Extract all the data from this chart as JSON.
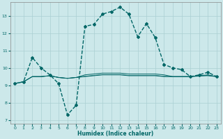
{
  "xlabel": "Humidex (Indice chaleur)",
  "xlim": [
    -0.5,
    23.5
  ],
  "ylim": [
    6.8,
    13.8
  ],
  "yticks": [
    7,
    8,
    9,
    10,
    11,
    12,
    13
  ],
  "xticks": [
    0,
    1,
    2,
    3,
    4,
    5,
    6,
    7,
    8,
    9,
    10,
    11,
    12,
    13,
    14,
    15,
    16,
    17,
    18,
    19,
    20,
    21,
    22,
    23
  ],
  "bg_color": "#cce8ea",
  "grid_color": "#aacfd2",
  "line_color": "#006666",
  "main_x": [
    0,
    1,
    2,
    3,
    4,
    5,
    6,
    7,
    8,
    9,
    10,
    11,
    12,
    13,
    14,
    15,
    16,
    17,
    18,
    19,
    20,
    21,
    22,
    23
  ],
  "main_y": [
    9.1,
    9.2,
    10.6,
    10.0,
    9.6,
    9.1,
    7.3,
    7.85,
    12.4,
    12.5,
    13.1,
    13.25,
    13.5,
    13.1,
    11.8,
    12.55,
    11.75,
    10.2,
    10.0,
    9.9,
    9.5,
    9.6,
    9.75,
    9.5
  ],
  "flat1_x": [
    0,
    1,
    2,
    3,
    4,
    5,
    6,
    7,
    8,
    9,
    10,
    11,
    12,
    13,
    14,
    15,
    16,
    17,
    18,
    19,
    20,
    21,
    22,
    23
  ],
  "flat1_y": [
    9.1,
    9.2,
    9.5,
    9.5,
    9.55,
    9.45,
    9.4,
    9.45,
    9.5,
    9.55,
    9.6,
    9.6,
    9.6,
    9.55,
    9.55,
    9.55,
    9.55,
    9.5,
    9.5,
    9.5,
    9.5,
    9.55,
    9.55,
    9.5
  ],
  "flat2_x": [
    0,
    1,
    2,
    3,
    4,
    5,
    6,
    7,
    8,
    9,
    10,
    11,
    12,
    13,
    14,
    15,
    16,
    17,
    18,
    19,
    20,
    21,
    22,
    23
  ],
  "flat2_y": [
    9.1,
    9.2,
    9.5,
    9.5,
    9.55,
    9.45,
    9.4,
    9.45,
    9.6,
    9.65,
    9.7,
    9.7,
    9.7,
    9.65,
    9.65,
    9.65,
    9.65,
    9.6,
    9.5,
    9.5,
    9.5,
    9.55,
    9.6,
    9.5
  ],
  "flat3_x": [
    0,
    1,
    2,
    3,
    4,
    5,
    6,
    7,
    8,
    9,
    10,
    11,
    12,
    13,
    14,
    15,
    16,
    17,
    18,
    19,
    20,
    21,
    22,
    23
  ],
  "flat3_y": [
    9.1,
    9.2,
    9.5,
    9.5,
    9.55,
    9.45,
    9.4,
    9.45,
    9.52,
    9.57,
    9.62,
    9.62,
    9.62,
    9.57,
    9.57,
    9.57,
    9.57,
    9.52,
    9.5,
    9.5,
    9.5,
    9.52,
    9.57,
    9.5
  ]
}
